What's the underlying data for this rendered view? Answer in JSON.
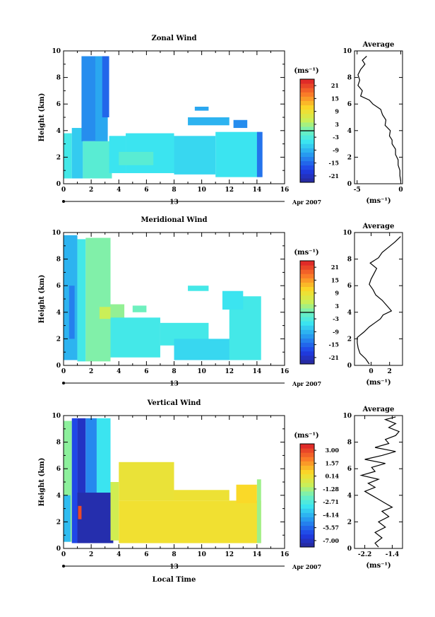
{
  "chart_data": [
    {
      "type": "heatmap",
      "title": "Zonal Wind",
      "ylabel": "Height (km)",
      "xlabel": "",
      "x_ticks": [
        "0",
        "2",
        "4",
        "6",
        "8",
        "10",
        "12",
        "14",
        "16"
      ],
      "y_ticks": [
        "0",
        "2",
        "4",
        "6",
        "8",
        "10"
      ],
      "xlim": [
        0,
        16
      ],
      "ylim": [
        0,
        10
      ],
      "date_tick_label": "13",
      "date_label": "Apr 2007",
      "colorbar_unit": "(ms⁻¹)",
      "colorbar_ticks": [
        "21",
        "15",
        "9",
        "3",
        "-3",
        "-9",
        "-15",
        "-21"
      ],
      "colorbar_range": [
        -24,
        24
      ],
      "colorbar_zero_line": true,
      "cells": [
        {
          "x0": 0.0,
          "x1": 0.6,
          "y0": 0.4,
          "y1": 3.8,
          "v": -4
        },
        {
          "x0": 0.6,
          "x1": 1.4,
          "y0": 0.4,
          "y1": 4.2,
          "v": -7
        },
        {
          "x0": 1.3,
          "x1": 2.3,
          "y0": 3.2,
          "y1": 9.6,
          "v": -12
        },
        {
          "x0": 2.3,
          "x1": 3.2,
          "y0": 2.8,
          "y1": 9.6,
          "v": -10
        },
        {
          "x0": 2.8,
          "x1": 3.3,
          "y0": 5.0,
          "y1": 9.6,
          "v": -15
        },
        {
          "x0": 1.4,
          "x1": 3.5,
          "y0": 0.4,
          "y1": 3.2,
          "v": -2
        },
        {
          "x0": 3.3,
          "x1": 4.5,
          "y0": 0.8,
          "y1": 3.6,
          "v": -5
        },
        {
          "x0": 4.5,
          "x1": 8.0,
          "y0": 0.8,
          "y1": 3.8,
          "v": -5
        },
        {
          "x0": 8.0,
          "x1": 11.0,
          "y0": 0.7,
          "y1": 3.6,
          "v": -6
        },
        {
          "x0": 11.0,
          "x1": 14.3,
          "y0": 0.5,
          "y1": 3.9,
          "v": -5
        },
        {
          "x0": 4.0,
          "x1": 6.5,
          "y0": 1.4,
          "y1": 2.4,
          "v": -2
        },
        {
          "x0": 9.0,
          "x1": 12.0,
          "y0": 4.4,
          "y1": 5.0,
          "v": -9
        },
        {
          "x0": 12.3,
          "x1": 13.3,
          "y0": 4.2,
          "y1": 4.8,
          "v": -12
        },
        {
          "x0": 9.5,
          "x1": 10.5,
          "y0": 5.5,
          "y1": 5.8,
          "v": -10
        },
        {
          "x0": 14.0,
          "x1": 14.4,
          "y0": 0.5,
          "y1": 3.9,
          "v": -14
        }
      ],
      "average": {
        "title": "Average",
        "xlabel": "(ms⁻¹)",
        "x_ticks": [
          "-5",
          "0"
        ],
        "x_tick_values": [
          -5,
          0
        ],
        "xlim": [
          -5.3,
          0.2
        ],
        "y_ticks": [
          "0",
          "2",
          "4",
          "6",
          "8",
          "10"
        ],
        "ylim": [
          0,
          10
        ],
        "x": [
          0.0,
          -0.1,
          -0.1,
          -0.3,
          -0.3,
          -0.6,
          -0.6,
          -1.0,
          -1.0,
          -1.3,
          -1.2,
          -1.8,
          -1.7,
          -2.1,
          -2.3,
          -3.2,
          -3.6,
          -4.6,
          -4.4,
          -4.9,
          -4.7,
          -4.9,
          -4.6,
          -4.1,
          -4.4,
          -3.9
        ],
        "y": [
          0.2,
          0.6,
          1.0,
          1.4,
          1.8,
          2.2,
          2.6,
          3.0,
          3.3,
          3.6,
          4.0,
          4.4,
          4.8,
          5.2,
          5.6,
          6.0,
          6.3,
          6.6,
          7.0,
          7.4,
          7.8,
          8.2,
          8.6,
          9.0,
          9.3,
          9.6
        ]
      }
    },
    {
      "type": "heatmap",
      "title": "Meridional Wind",
      "ylabel": "Height (km)",
      "xlabel": "",
      "x_ticks": [
        "0",
        "2",
        "4",
        "6",
        "8",
        "10",
        "12",
        "14",
        "16"
      ],
      "y_ticks": [
        "0",
        "2",
        "4",
        "6",
        "8",
        "10"
      ],
      "xlim": [
        0,
        16
      ],
      "ylim": [
        0,
        10
      ],
      "date_tick_label": "13",
      "date_label": "Apr 2007",
      "colorbar_unit": "(ms⁻¹)",
      "colorbar_ticks": [
        "21",
        "15",
        "9",
        "3",
        "-3",
        "-9",
        "-15",
        "-21"
      ],
      "colorbar_range": [
        -24,
        24
      ],
      "colorbar_zero_line": true,
      "cells": [
        {
          "x0": 0.0,
          "x1": 1.0,
          "y0": 0.4,
          "y1": 9.8,
          "v": -9
        },
        {
          "x0": 0.4,
          "x1": 0.8,
          "y0": 2.0,
          "y1": 6.0,
          "v": -13
        },
        {
          "x0": 1.0,
          "x1": 1.6,
          "y0": 0.3,
          "y1": 9.5,
          "v": -4
        },
        {
          "x0": 1.6,
          "x1": 3.4,
          "y0": 0.3,
          "y1": 9.6,
          "v": 1
        },
        {
          "x0": 2.6,
          "x1": 3.4,
          "y0": 3.5,
          "y1": 4.4,
          "v": 5
        },
        {
          "x0": 3.4,
          "x1": 4.4,
          "y0": 2.2,
          "y1": 4.6,
          "v": 2
        },
        {
          "x0": 3.4,
          "x1": 7.0,
          "y0": 0.6,
          "y1": 3.6,
          "v": -4
        },
        {
          "x0": 7.0,
          "x1": 10.5,
          "y0": 1.5,
          "y1": 3.2,
          "v": -4
        },
        {
          "x0": 8.0,
          "x1": 12.5,
          "y0": 0.4,
          "y1": 2.0,
          "v": -6
        },
        {
          "x0": 12.0,
          "x1": 14.3,
          "y0": 0.4,
          "y1": 5.2,
          "v": -4
        },
        {
          "x0": 5.0,
          "x1": 6.0,
          "y0": 4.0,
          "y1": 4.5,
          "v": 0
        },
        {
          "x0": 11.5,
          "x1": 13.0,
          "y0": 4.2,
          "y1": 5.6,
          "v": -5
        },
        {
          "x0": 9.0,
          "x1": 10.5,
          "y0": 5.6,
          "y1": 6.0,
          "v": -4
        }
      ],
      "average": {
        "title": "Average",
        "xlabel": "(ms⁻¹)",
        "x_ticks": [
          "0",
          "2"
        ],
        "x_tick_values": [
          0,
          2
        ],
        "xlim": [
          -1.8,
          3.4
        ],
        "y_ticks": [
          "0",
          "2",
          "4",
          "6",
          "8",
          "10"
        ],
        "ylim": [
          0,
          10
        ],
        "x": [
          -0.2,
          -0.6,
          -1.2,
          -1.4,
          -1.5,
          -1.5,
          -0.8,
          -0.2,
          0.4,
          1.0,
          1.3,
          2.2,
          1.7,
          1.2,
          0.5,
          0.2,
          -0.2,
          0.0,
          0.3,
          0.6,
          -0.1,
          0.8,
          1.2,
          1.9,
          2.6,
          3.2
        ],
        "y": [
          0.1,
          0.5,
          0.9,
          1.3,
          1.7,
          2.1,
          2.5,
          2.9,
          3.2,
          3.5,
          3.8,
          4.1,
          4.5,
          4.9,
          5.3,
          5.7,
          6.1,
          6.5,
          6.9,
          7.3,
          7.7,
          8.1,
          8.5,
          8.9,
          9.3,
          9.7
        ]
      }
    },
    {
      "type": "heatmap",
      "title": "Vertical Wind",
      "ylabel": "Height (km)",
      "xlabel": "Local Time",
      "x_ticks": [
        "0",
        "2",
        "4",
        "6",
        "8",
        "10",
        "12",
        "14",
        "16"
      ],
      "y_ticks": [
        "0",
        "2",
        "4",
        "6",
        "8",
        "10"
      ],
      "xlim": [
        0,
        16
      ],
      "ylim": [
        0,
        10
      ],
      "date_tick_label": "13",
      "date_label": "Apr 2007",
      "colorbar_unit": "(ms⁻¹)",
      "colorbar_ticks": [
        "3.00",
        "1.57",
        "0.14",
        "-1.28",
        "-2.71",
        "-4.14",
        "-5.57",
        "-7.00"
      ],
      "colorbar_range": [
        -7.8,
        3.8
      ],
      "colorbar_zero_line": false,
      "cells": [
        {
          "x0": 0.0,
          "x1": 0.6,
          "y0": 0.5,
          "y1": 9.6,
          "v": -1.6
        },
        {
          "x0": 0.0,
          "x1": 0.5,
          "y0": 0.5,
          "y1": 4.0,
          "v": -4.0
        },
        {
          "x0": 0.6,
          "x1": 1.0,
          "y0": 0.4,
          "y1": 9.8,
          "v": -6.2
        },
        {
          "x0": 1.0,
          "x1": 1.6,
          "y0": 0.4,
          "y1": 9.8,
          "v": -7.0
        },
        {
          "x0": 1.6,
          "x1": 2.4,
          "y0": 0.4,
          "y1": 9.8,
          "v": -5.0
        },
        {
          "x0": 2.4,
          "x1": 3.4,
          "y0": 0.4,
          "y1": 9.8,
          "v": -3.2
        },
        {
          "x0": 1.0,
          "x1": 3.6,
          "y0": 0.4,
          "y1": 4.2,
          "v": -7.4
        },
        {
          "x0": 1.05,
          "x1": 1.3,
          "y0": 2.2,
          "y1": 3.2,
          "v": 3.0
        },
        {
          "x0": 3.4,
          "x1": 4.0,
          "y0": 0.6,
          "y1": 5.0,
          "v": -0.6
        },
        {
          "x0": 4.0,
          "x1": 14.3,
          "y0": 0.4,
          "y1": 3.6,
          "v": 0.3
        },
        {
          "x0": 4.0,
          "x1": 8.0,
          "y0": 3.6,
          "y1": 6.5,
          "v": 0.1
        },
        {
          "x0": 8.0,
          "x1": 12.0,
          "y0": 3.6,
          "y1": 4.4,
          "v": 0.2
        },
        {
          "x0": 12.5,
          "x1": 14.0,
          "y0": 3.4,
          "y1": 4.8,
          "v": 0.6
        },
        {
          "x0": 14.0,
          "x1": 14.3,
          "y0": 0.4,
          "y1": 5.2,
          "v": -1.4
        }
      ],
      "average": {
        "title": "Average",
        "xlabel": "(ms⁻¹)",
        "x_ticks": [
          "-2.2",
          "-1.4"
        ],
        "x_tick_values": [
          -2.2,
          -1.4
        ],
        "xlim": [
          -2.5,
          -1.1
        ],
        "y_ticks": [
          "0",
          "2",
          "4",
          "6",
          "8",
          "10"
        ],
        "ylim": [
          0,
          10
        ],
        "x": [
          -1.8,
          -1.9,
          -1.7,
          -1.9,
          -1.6,
          -1.8,
          -1.5,
          -1.7,
          -1.4,
          -1.6,
          -1.8,
          -2.0,
          -2.2,
          -1.9,
          -2.1,
          -1.8,
          -2.3,
          -1.9,
          -2.0,
          -1.6,
          -2.2,
          -1.7,
          -1.3,
          -1.9,
          -1.5,
          -1.6,
          -1.3,
          -1.2,
          -1.5,
          -1.3,
          -1.6,
          -1.3
        ],
        "y": [
          0.1,
          0.4,
          0.8,
          1.2,
          1.6,
          2.0,
          2.4,
          2.8,
          3.1,
          3.4,
          3.7,
          4.0,
          4.3,
          4.6,
          4.9,
          5.2,
          5.5,
          5.8,
          6.1,
          6.4,
          6.7,
          7.0,
          7.3,
          7.6,
          7.9,
          8.2,
          8.5,
          8.8,
          9.1,
          9.4,
          9.7,
          9.9
        ]
      }
    }
  ]
}
